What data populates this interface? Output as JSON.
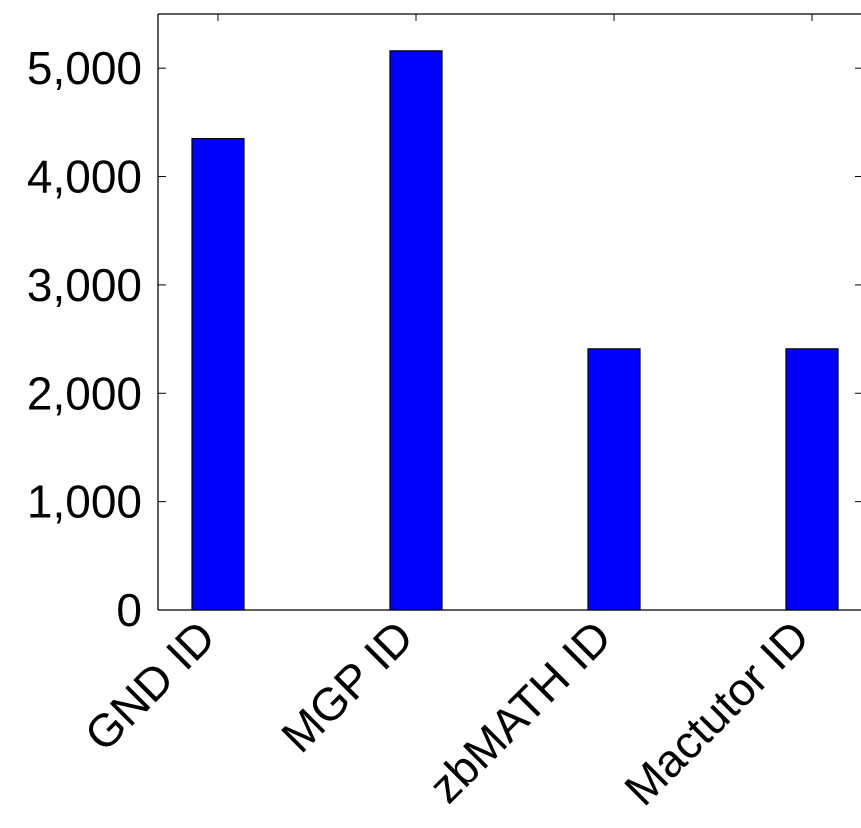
{
  "chart_data": {
    "type": "bar",
    "categories": [
      "GND ID",
      "MGP ID",
      "zbMATH ID",
      "Mactutor ID"
    ],
    "values": [
      4350,
      5160,
      2410,
      2410
    ],
    "ylim": [
      0,
      5500
    ],
    "yticks": [
      0,
      1000,
      2000,
      3000,
      4000,
      5000
    ],
    "ytick_labels": [
      "0",
      "1,000",
      "2,000",
      "3,000",
      "4,000",
      "5,000"
    ],
    "title": "",
    "xlabel": "",
    "ylabel": "",
    "grid": false,
    "bar_color": "#0000ff",
    "edge_color": "#000000"
  }
}
